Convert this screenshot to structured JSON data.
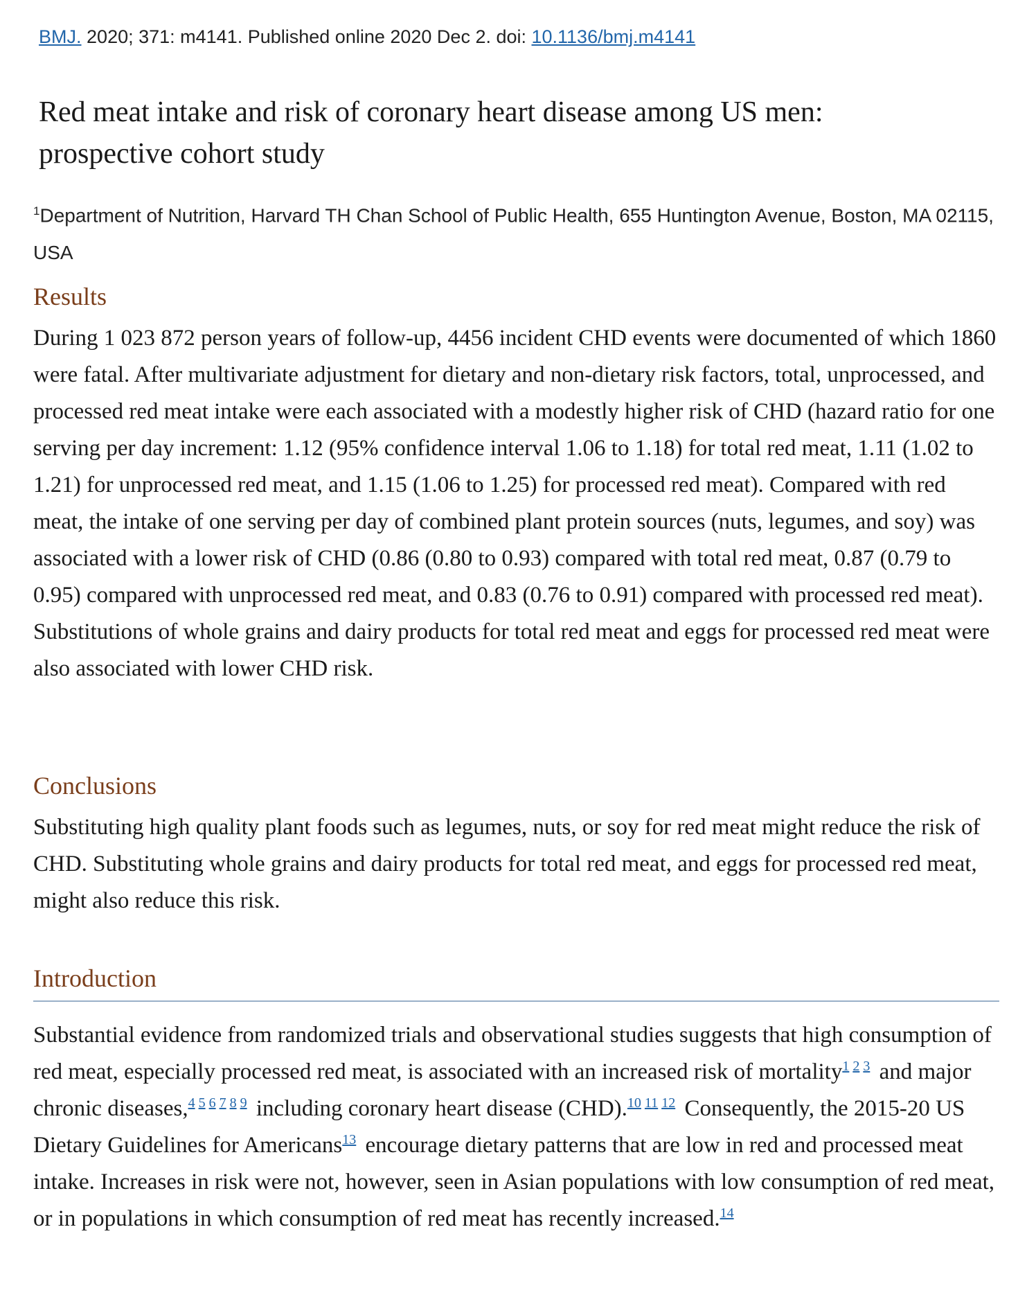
{
  "citation": {
    "journal": "BMJ.",
    "details": "2020; 371: m4141.  Published online 2020 Dec 2. doi: ",
    "doi": "10.1136/bmj.m4141"
  },
  "title": "Red meat intake and risk of coronary heart disease among US men: prospective cohort study",
  "affiliation": {
    "marker": "1",
    "text": "Department of Nutrition, Harvard TH Chan School of Public Health, 655 Huntington Avenue, Boston, MA 02115, USA"
  },
  "sections": [
    {
      "heading": "Results",
      "paragraphs": [
        "During 1 023 872 person years of follow-up, 4456 incident CHD events were documented of which 1860 were fatal. After multivariate adjustment for dietary and non-dietary risk factors, total, unprocessed, and processed red meat intake were each associated with a modestly higher risk of CHD (hazard ratio for one serving per day increment: 1.12 (95% confidence interval 1.06 to 1.18) for total red meat, 1.11 (1.02 to 1.21) for unprocessed red meat, and 1.15 (1.06 to 1.25) for processed red meat). Compared with red meat, the intake of one serving per day of combined plant protein sources (nuts, legumes, and soy) was associated with a lower risk of CHD (0.86 (0.80 to 0.93) compared with total red meat, 0.87 (0.79 to 0.95) compared with unprocessed red meat, and 0.83 (0.76 to 0.91) compared with processed red meat). Substitutions of whole grains and dairy products for total red meat and eggs for processed red meat were also associated with lower CHD risk."
      ]
    },
    {
      "heading": "Conclusions",
      "paragraphs": [
        "Substituting high quality plant foods such as legumes, nuts, or soy for red meat might reduce the risk of CHD. Substituting whole grains and dairy products for total red meat, and eggs for processed red meat, might also reduce this risk."
      ]
    }
  ],
  "introduction": {
    "heading": "Introduction",
    "segments": [
      "Substantial evidence from randomized trials and observational studies suggests that high consumption of red meat, especially processed red meat, is associated with an increased risk of mortality",
      [
        "1",
        "2",
        "3"
      ],
      " and major chronic diseases,",
      [
        "4",
        "5",
        "6",
        "7",
        "8",
        "9"
      ],
      " including coronary heart disease (CHD).",
      [
        "10",
        "11",
        "12"
      ],
      " Consequently, the 2015-20 US Dietary Guidelines for Americans",
      [
        "13"
      ],
      " encourage dietary patterns that are low in red and processed meat intake. Increases in risk were not, however, seen in Asian populations with low consumption of red meat, or in populations in which consumption of red meat has recently increased.",
      [
        "14"
      ]
    ]
  }
}
